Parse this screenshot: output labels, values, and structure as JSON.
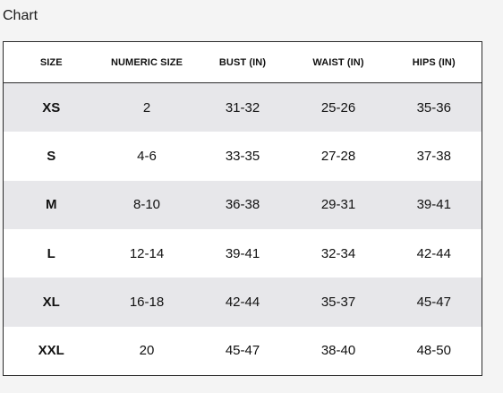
{
  "page": {
    "heading": "Chart"
  },
  "table": {
    "headers": [
      "SIZE",
      "NUMERIC SIZE",
      "BUST (IN)",
      "WAIST (IN)",
      "HIPS (IN)"
    ],
    "rows": [
      [
        "XS",
        "2",
        "31-32",
        "25-26",
        "35-36"
      ],
      [
        "S",
        "4-6",
        "33-35",
        "27-28",
        "37-38"
      ],
      [
        "M",
        "8-10",
        "36-38",
        "29-31",
        "39-41"
      ],
      [
        "L",
        "12-14",
        "39-41",
        "32-34",
        "42-44"
      ],
      [
        "XL",
        "16-18",
        "42-44",
        "35-37",
        "45-47"
      ],
      [
        "XXL",
        "20",
        "45-47",
        "38-40",
        "48-50"
      ]
    ]
  },
  "colors": {
    "page_background": "#f4f4f4",
    "shaded_row": "#e7e7ea",
    "border": "#2b2b2b"
  }
}
